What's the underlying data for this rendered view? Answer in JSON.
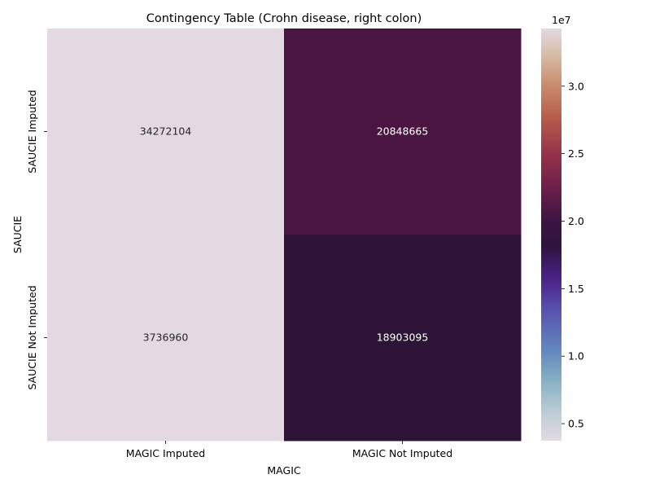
{
  "chart_data": {
    "type": "heatmap",
    "title": "Contingency Table (Crohn disease, right colon)",
    "xlabel": "MAGIC",
    "ylabel": "SAUCIE",
    "x_categories": [
      "MAGIC Imputed",
      "MAGIC Not Imputed"
    ],
    "y_categories": [
      "SAUCIE Imputed",
      "SAUCIE Not Imputed"
    ],
    "values": [
      [
        34272104,
        20848665
      ],
      [
        3736960,
        18903095
      ]
    ],
    "value_labels": [
      [
        "34272104",
        "20848665"
      ],
      [
        "3736960",
        "18903095"
      ]
    ],
    "colormap": "twilight",
    "colorbar": {
      "vmin": 3736960,
      "vmax": 34272104,
      "ticks": [
        5000000,
        10000000,
        15000000,
        20000000,
        25000000,
        30000000
      ],
      "tick_labels": [
        "0.5",
        "1.0",
        "1.5",
        "2.0",
        "2.5",
        "3.0"
      ],
      "offset_label": "1e7"
    },
    "colors": {
      "cell_light": "#e2d9e2",
      "cell_dark_top": "#4a1540",
      "cell_dark_bottom": "#2d1436",
      "annotation_dark": "#262626",
      "annotation_light": "#ffffff"
    }
  }
}
